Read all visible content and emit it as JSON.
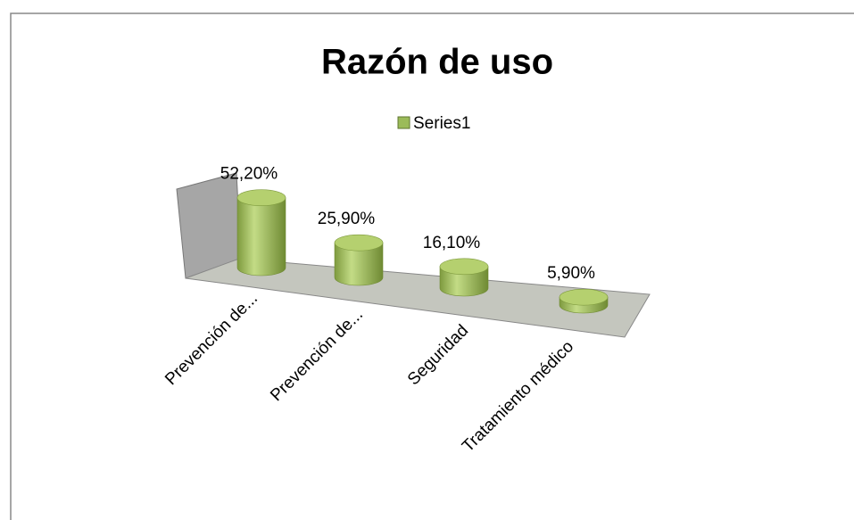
{
  "chart_data": {
    "type": "bar3d",
    "title": "Razón de uso",
    "categories": [
      "Prevención de...",
      "Prevención de...",
      "Seguridad",
      "Tratamiento médico"
    ],
    "series": [
      {
        "name": "Series1",
        "color": "#9bbb59",
        "values": [
          52.2,
          25.9,
          16.1,
          5.9
        ],
        "value_labels": [
          "52,20%",
          "25,90%",
          "16,10%",
          "5,90%"
        ]
      }
    ]
  }
}
